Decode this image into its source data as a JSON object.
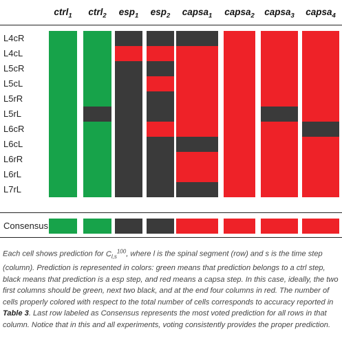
{
  "table": {
    "columns": [
      {
        "base": "ctrl",
        "sub": "1"
      },
      {
        "base": "ctrl",
        "sub": "2"
      },
      {
        "base": "esp",
        "sub": "1"
      },
      {
        "base": "esp",
        "sub": "2"
      },
      {
        "base": "capsa",
        "sub": "1"
      },
      {
        "base": "capsa",
        "sub": "2"
      },
      {
        "base": "capsa",
        "sub": "3"
      },
      {
        "base": "capsa",
        "sub": "4"
      }
    ],
    "rows": [
      {
        "label": "L4cR",
        "cells": [
          "green",
          "green",
          "black",
          "black",
          "black",
          "red",
          "red",
          "red"
        ]
      },
      {
        "label": "L4cL",
        "cells": [
          "green",
          "green",
          "red",
          "red",
          "red",
          "red",
          "red",
          "red"
        ]
      },
      {
        "label": "L5cR",
        "cells": [
          "green",
          "green",
          "black",
          "black",
          "red",
          "red",
          "red",
          "red"
        ]
      },
      {
        "label": "L5cL",
        "cells": [
          "green",
          "green",
          "black",
          "red",
          "red",
          "red",
          "red",
          "red"
        ]
      },
      {
        "label": "L5rR",
        "cells": [
          "green",
          "green",
          "black",
          "black",
          "red",
          "red",
          "red",
          "red"
        ]
      },
      {
        "label": "L5rL",
        "cells": [
          "green",
          "black",
          "black",
          "black",
          "red",
          "red",
          "black",
          "red"
        ]
      },
      {
        "label": "L6cR",
        "cells": [
          "green",
          "green",
          "black",
          "red",
          "red",
          "red",
          "red",
          "black"
        ]
      },
      {
        "label": "L6cL",
        "cells": [
          "green",
          "green",
          "black",
          "black",
          "black",
          "red",
          "red",
          "red"
        ]
      },
      {
        "label": "L6rR",
        "cells": [
          "green",
          "green",
          "black",
          "black",
          "red",
          "red",
          "red",
          "red"
        ]
      },
      {
        "label": "L6rL",
        "cells": [
          "green",
          "green",
          "black",
          "black",
          "red",
          "red",
          "red",
          "red"
        ]
      },
      {
        "label": "L7rL",
        "cells": [
          "green",
          "green",
          "black",
          "black",
          "black",
          "red",
          "red",
          "red"
        ]
      }
    ],
    "consensus": {
      "label": "Consensus",
      "cells": [
        "green",
        "green",
        "black",
        "black",
        "red",
        "red",
        "red",
        "red"
      ]
    }
  },
  "colors": {
    "green": "#17a34a",
    "black": "#3a3a3a",
    "red": "#ee2228"
  },
  "caption": {
    "p1": "Each cell shows prediction for ",
    "math_base": "C",
    "math_sub": "l,s",
    "math_sup": "100",
    "p2": ", where l is the spinal segment (row) and s is the time step (column). Prediction is represented in colors: green means that prediction belongs to a ctrl step, black means that prediction is a esp step, and red means a capsa step. In this case, ideally, the two first columns should be green, next two black, and at the end four columns in red. The number of cells properly colored with respect to the total number of cells corresponds to accuracy reported in ",
    "ref": "Table 3",
    "p3": ". Last row labeled as Consensus represents the most voted prediction for all rows in that column. Notice that in this and all experiments, voting consistently provides the proper prediction."
  }
}
